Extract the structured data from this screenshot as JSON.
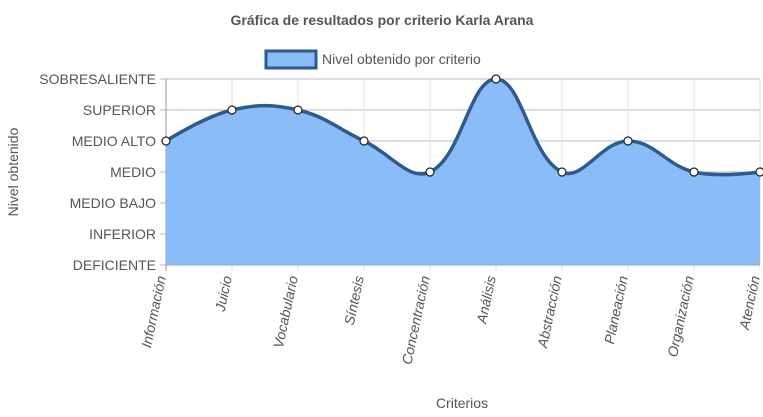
{
  "chart_data": {
    "type": "line",
    "title": "Gráfica de resultados por criterio Karla Arana",
    "xlabel": "Criterios",
    "ylabel": "Nivel obtenido",
    "categories": [
      "Información",
      "Juicio",
      "Vocabulario",
      "Síntesis",
      "Concentración",
      "Análisis",
      "Abstracción",
      "Planeación",
      "Organización",
      "Atención"
    ],
    "y_levels": [
      "DEFICIENTE",
      "INFERIOR",
      "MEDIO BAJO",
      "MEDIO",
      "MEDIO ALTO",
      "SUPERIOR",
      "SOBRESALIENTE"
    ],
    "ylim": [
      0,
      6
    ],
    "series": [
      {
        "name": "Nivel obtenido por criterio",
        "values": [
          4,
          5,
          5,
          4,
          3,
          6,
          3,
          4,
          3,
          3
        ],
        "fill": "#8abcf7",
        "stroke": "#2f5a8f"
      }
    ],
    "legend": "top-center",
    "grid": true
  }
}
